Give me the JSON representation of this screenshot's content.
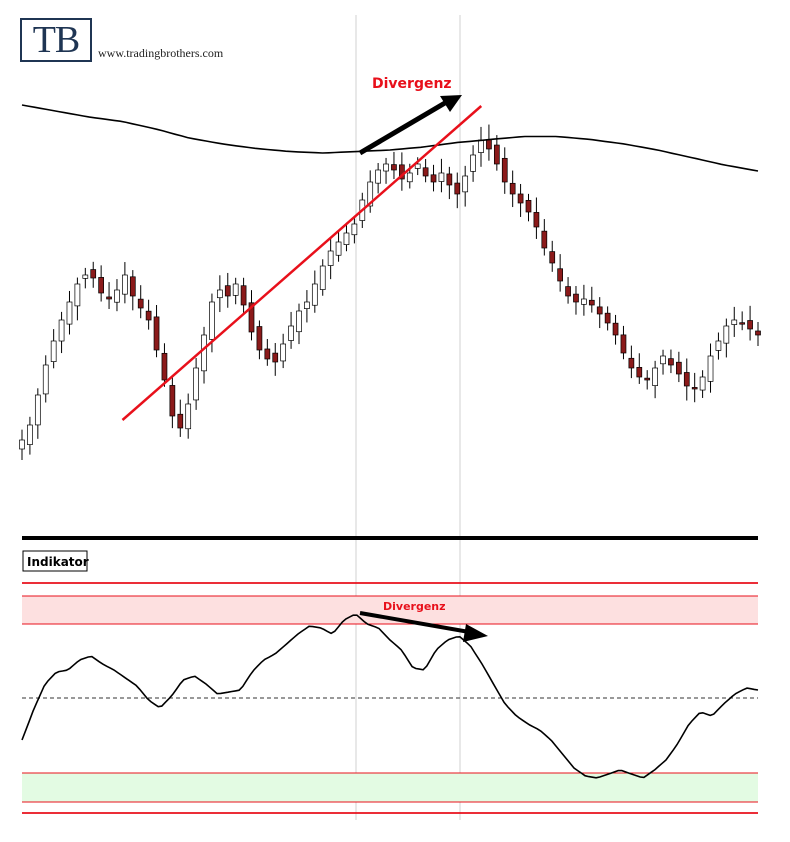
{
  "logo": {
    "text": "TB",
    "website": "www.tradingbrothers.com"
  },
  "chart_data": [
    {
      "type": "candlestick",
      "panel": "price",
      "title": "",
      "annotations": [
        {
          "text": "Divergenz",
          "kind": "arrow-up"
        }
      ],
      "trendline": {
        "from": [
          0.18,
          0.0
        ],
        "to": [
          0.59,
          1.0
        ]
      },
      "moving_average": [
        0.88,
        0.84,
        0.8,
        0.77,
        0.72,
        0.66,
        0.62,
        0.59,
        0.57,
        0.56,
        0.57,
        0.58,
        0.6,
        0.63,
        0.65,
        0.67,
        0.67,
        0.65,
        0.62,
        0.58,
        0.53,
        0.48,
        0.44
      ],
      "closes": [
        0.0,
        0.05,
        0.15,
        0.25,
        0.33,
        0.4,
        0.46,
        0.52,
        0.55,
        0.54,
        0.49,
        0.47,
        0.5,
        0.55,
        0.48,
        0.44,
        0.4,
        0.3,
        0.2,
        0.08,
        0.04,
        0.12,
        0.24,
        0.35,
        0.46,
        0.5,
        0.48,
        0.52,
        0.45,
        0.36,
        0.3,
        0.27,
        0.26,
        0.32,
        0.38,
        0.43,
        0.46,
        0.52,
        0.58,
        0.63,
        0.66,
        0.69,
        0.72,
        0.8,
        0.86,
        0.9,
        0.92,
        0.9,
        0.87,
        0.89,
        0.92,
        0.88,
        0.86,
        0.89,
        0.85,
        0.82,
        0.88,
        0.95,
        1.0,
        0.97,
        0.92,
        0.86,
        0.82,
        0.79,
        0.76,
        0.71,
        0.64,
        0.59,
        0.53,
        0.48,
        0.46,
        0.47,
        0.45,
        0.42,
        0.39,
        0.35,
        0.29,
        0.24,
        0.21,
        0.2,
        0.24,
        0.28,
        0.25,
        0.22,
        0.18,
        0.17,
        0.21,
        0.28,
        0.33,
        0.38,
        0.4,
        0.39,
        0.37,
        0.35
      ]
    },
    {
      "type": "line",
      "panel": "indicator",
      "title": "Indikator",
      "annotations": [
        {
          "text": "Divergenz",
          "kind": "arrow-down"
        }
      ],
      "bands": {
        "overbought": "upper",
        "oversold": "lower",
        "midline": "dashed"
      },
      "values": [
        0.1,
        0.25,
        0.38,
        0.44,
        0.45,
        0.5,
        0.52,
        0.48,
        0.45,
        0.41,
        0.37,
        0.3,
        0.26,
        0.32,
        0.4,
        0.42,
        0.38,
        0.33,
        0.34,
        0.35,
        0.44,
        0.5,
        0.53,
        0.58,
        0.63,
        0.67,
        0.66,
        0.63,
        0.7,
        0.73,
        0.68,
        0.66,
        0.6,
        0.55,
        0.46,
        0.45,
        0.55,
        0.6,
        0.62,
        0.57,
        0.48,
        0.38,
        0.28,
        0.22,
        0.18,
        0.15,
        0.1,
        0.03,
        -0.04,
        -0.08,
        -0.09,
        -0.07,
        -0.05,
        -0.07,
        -0.09,
        -0.05,
        0.0,
        0.08,
        0.18,
        0.24,
        0.22,
        0.28,
        0.33,
        0.36,
        0.35
      ]
    }
  ],
  "colors": {
    "accent_red": "#e8101b",
    "up_candle": "#ffffff",
    "down_candle": "#8b1a1a",
    "overbought_fill": "#fde0e0",
    "oversold_fill": "#e3fbe3"
  }
}
